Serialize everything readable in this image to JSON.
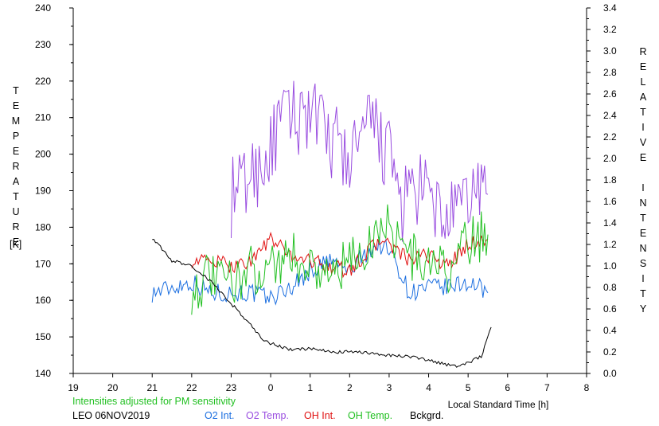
{
  "chart_data": {
    "type": "line",
    "ylabel_left": "TEMPERATURE",
    "ylabel_left_unit": "[K]",
    "ylabel_right": "RELATIVE INTENSITY",
    "xlabel": "Local Standard Time [h]",
    "note": "Intensities adjusted for PM sensitivity",
    "station_date": "LEO 06NOV2019",
    "x_ticks": [
      "19",
      "20",
      "21",
      "22",
      "23",
      "0",
      "1",
      "2",
      "3",
      "4",
      "5",
      "6",
      "7",
      "8"
    ],
    "y_left_ticks": [
      140,
      150,
      160,
      170,
      180,
      190,
      200,
      210,
      220,
      230,
      240
    ],
    "y_right_ticks": [
      "0.0",
      "0.2",
      "0.4",
      "0.6",
      "0.8",
      "1.0",
      "1.2",
      "1.4",
      "1.6",
      "1.8",
      "2.0",
      "2.2",
      "2.4",
      "2.6",
      "2.8",
      "3.0",
      "3.2",
      "3.4"
    ],
    "ylim_left": [
      140,
      240
    ],
    "ylim_right": [
      0.0,
      3.4
    ],
    "xlim_hours_since_19": [
      0,
      13
    ],
    "series": [
      {
        "name": "O2 Int.",
        "axis": "right",
        "color": "#1c6fe0",
        "x": [
          "21:00",
          "21:30",
          "22:00",
          "22:30",
          "23:00",
          "23:30",
          "0:00",
          "0:30",
          "1:00",
          "1:30",
          "2:00",
          "2:30",
          "2:50",
          "3:10",
          "3:30",
          "4:00",
          "4:30",
          "5:00",
          "5:30"
        ],
        "y": [
          0.75,
          0.8,
          0.85,
          0.75,
          0.75,
          0.75,
          0.7,
          0.8,
          0.95,
          1.05,
          0.95,
          1.15,
          1.2,
          1.05,
          0.75,
          0.8,
          0.8,
          0.85,
          0.75
        ]
      },
      {
        "name": "O2 Temp.",
        "axis": "left",
        "color": "#9a4ee0",
        "x": [
          "23:00",
          "23:20",
          "23:40",
          "0:00",
          "0:20",
          "0:40",
          "1:00",
          "1:20",
          "1:40",
          "2:00",
          "2:20",
          "2:40",
          "3:00",
          "3:20",
          "3:40",
          "4:00",
          "4:20",
          "4:40",
          "5:00",
          "5:20",
          "5:30"
        ],
        "y": [
          188,
          192,
          196,
          201,
          210,
          210,
          213,
          205,
          203,
          198,
          205,
          207,
          199,
          186,
          190,
          188,
          183,
          182,
          188,
          192,
          189
        ]
      },
      {
        "name": "OH Int.",
        "axis": "right",
        "color": "#e01010",
        "x": [
          "22:00",
          "22:30",
          "23:00",
          "23:30",
          "0:00",
          "0:30",
          "1:00",
          "1:30",
          "2:00",
          "2:30",
          "2:50",
          "3:10",
          "3:30",
          "4:00",
          "4:30",
          "5:00",
          "5:30"
        ],
        "y": [
          1.05,
          1.05,
          1.0,
          1.05,
          1.25,
          1.1,
          1.05,
          1.0,
          0.95,
          1.15,
          1.25,
          1.15,
          1.05,
          1.1,
          1.0,
          1.2,
          1.25
        ]
      },
      {
        "name": "OH Temp.",
        "axis": "left",
        "color": "#22c022",
        "x": [
          "22:00",
          "22:30",
          "23:00",
          "23:30",
          "0:00",
          "0:30",
          "1:00",
          "1:30",
          "2:00",
          "2:30",
          "2:50",
          "3:10",
          "3:30",
          "4:00",
          "4:30",
          "5:00",
          "5:30"
        ],
        "y": [
          163,
          166,
          165,
          168,
          170,
          172,
          170,
          167,
          170,
          175,
          182,
          178,
          172,
          170,
          168,
          176,
          178
        ]
      },
      {
        "name": "Bckgrd.",
        "axis": "right",
        "color": "#000000",
        "x": [
          "21:00",
          "21:30",
          "22:00",
          "22:30",
          "23:00",
          "23:30",
          "23:50",
          "0:30",
          "1:00",
          "1:30",
          "2:00",
          "2:30",
          "3:00",
          "3:30",
          "4:00",
          "4:30",
          "4:45",
          "5:00",
          "5:20",
          "5:35"
        ],
        "y": [
          1.26,
          1.05,
          1.0,
          0.85,
          0.65,
          0.45,
          0.3,
          0.22,
          0.23,
          0.2,
          0.2,
          0.19,
          0.17,
          0.16,
          0.12,
          0.08,
          0.07,
          0.1,
          0.16,
          0.43
        ]
      }
    ]
  }
}
